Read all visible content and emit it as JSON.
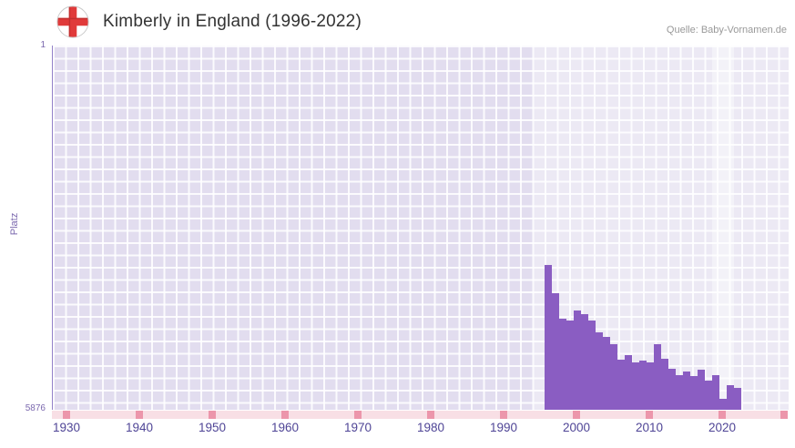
{
  "header": {
    "title": "Kimberly in England (1996-2022)",
    "source": "Quelle: Baby-Vornamen.de",
    "flag_icon": "england-flag-icon"
  },
  "chart_data": {
    "type": "bar",
    "title": "Kimberly in England (1996-2022)",
    "xlabel": "",
    "ylabel": "Platz",
    "grid": true,
    "legend_position": "none",
    "y_axis": {
      "min": 1,
      "max": 5876,
      "inverted": true,
      "top_tick_label": "1",
      "bottom_tick_label": "5876"
    },
    "x_axis": {
      "min": 1928,
      "max": 2029,
      "ticks": [
        1930,
        1940,
        1950,
        1960,
        1970,
        1980,
        1990,
        2000,
        2010,
        2020
      ],
      "end_tick": true
    },
    "highlights": [
      {
        "from": 1994,
        "to": 2029,
        "alpha": 0.35
      },
      {
        "from": 2018.5,
        "to": 2021.5,
        "alpha": 0.4
      }
    ],
    "series": [
      {
        "name": "Platz",
        "x": [
          1996,
          1997,
          1998,
          1999,
          2000,
          2001,
          2002,
          2003,
          2004,
          2005,
          2006,
          2007,
          2008,
          2009,
          2010,
          2011,
          2012,
          2013,
          2014,
          2015,
          2016,
          2017,
          2018,
          2019,
          2020,
          2021,
          2022
        ],
        "values": [
          3540,
          4000,
          4400,
          4440,
          4280,
          4330,
          4440,
          4630,
          4700,
          4820,
          5070,
          5000,
          5110,
          5080,
          5110,
          4820,
          5060,
          5215,
          5320,
          5260,
          5330,
          5230,
          5410,
          5320,
          5700,
          5480,
          5520
        ]
      }
    ],
    "colors": {
      "bar": "#8a5dc2",
      "plot_bg": "#e2ddef",
      "tick": "#ec96ab",
      "tick_strip": "#f8dfe5",
      "x_label": "#4f4596",
      "y_label": "#7b68ae",
      "title": "#333333",
      "source": "#999999",
      "flag_red": "#e03a3a"
    }
  }
}
